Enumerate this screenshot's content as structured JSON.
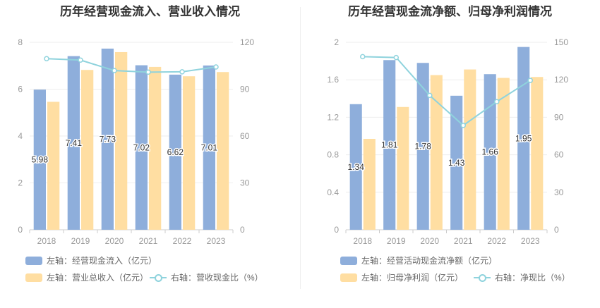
{
  "chart_data": [
    {
      "type": "bar",
      "title": "历年经营现金流入、营业收入情况",
      "categories": [
        "2018",
        "2019",
        "2020",
        "2021",
        "2022",
        "2023"
      ],
      "left_axis": {
        "ylim": [
          0,
          8
        ],
        "ticks": [
          "0",
          "2",
          "4",
          "6",
          "8"
        ]
      },
      "right_axis": {
        "ylim": [
          0,
          120
        ],
        "ticks": [
          "0",
          "30",
          "60",
          "90",
          "120"
        ]
      },
      "series": [
        {
          "name": "左轴：经营现金流入（亿元）",
          "axis": "left",
          "kind": "bar",
          "color": "#8eaedb",
          "values": [
            5.98,
            7.41,
            7.73,
            7.02,
            6.62,
            7.01
          ],
          "labels": [
            "5.98",
            "7.41",
            "7.73",
            "7.02",
            "6.62",
            "7.01"
          ]
        },
        {
          "name": "左轴：营业总收入（亿元）",
          "axis": "left",
          "kind": "bar",
          "color": "#ffdea2",
          "values": [
            5.46,
            6.82,
            7.58,
            6.95,
            6.55,
            6.73
          ]
        },
        {
          "name": "右轴：营收现金比（%）",
          "axis": "right",
          "kind": "line",
          "color": "#8fd3dd",
          "values": [
            109.5,
            108.6,
            101.9,
            100.9,
            101.1,
            104.2
          ]
        }
      ]
    },
    {
      "type": "bar",
      "title": "历年经营现金流净额、归母净利润情况",
      "categories": [
        "2018",
        "2019",
        "2020",
        "2021",
        "2022",
        "2023"
      ],
      "left_axis": {
        "ylim": [
          0,
          2
        ],
        "ticks": [
          "0",
          "0.4",
          "0.8",
          "1.2",
          "1.6",
          "2"
        ]
      },
      "right_axis": {
        "ylim": [
          0,
          150
        ],
        "ticks": [
          "0",
          "30",
          "60",
          "90",
          "120",
          "150"
        ]
      },
      "series": [
        {
          "name": "左轴：经营活动现金流净额（亿元）",
          "axis": "left",
          "kind": "bar",
          "color": "#8eaedb",
          "values": [
            1.34,
            1.81,
            1.78,
            1.43,
            1.66,
            1.95
          ],
          "labels": [
            "1.34",
            "1.81",
            "1.78",
            "1.43",
            "1.66",
            "1.95"
          ]
        },
        {
          "name": "左轴：归母净利润（亿元）",
          "axis": "left",
          "kind": "bar",
          "color": "#ffdea2",
          "values": [
            0.97,
            1.31,
            1.65,
            1.71,
            1.62,
            1.63
          ]
        },
        {
          "name": "右轴：净现比（%）",
          "axis": "right",
          "kind": "line",
          "color": "#8fd3dd",
          "values": [
            138.5,
            137.8,
            107.5,
            83.5,
            102.5,
            119.5
          ]
        }
      ]
    }
  ]
}
